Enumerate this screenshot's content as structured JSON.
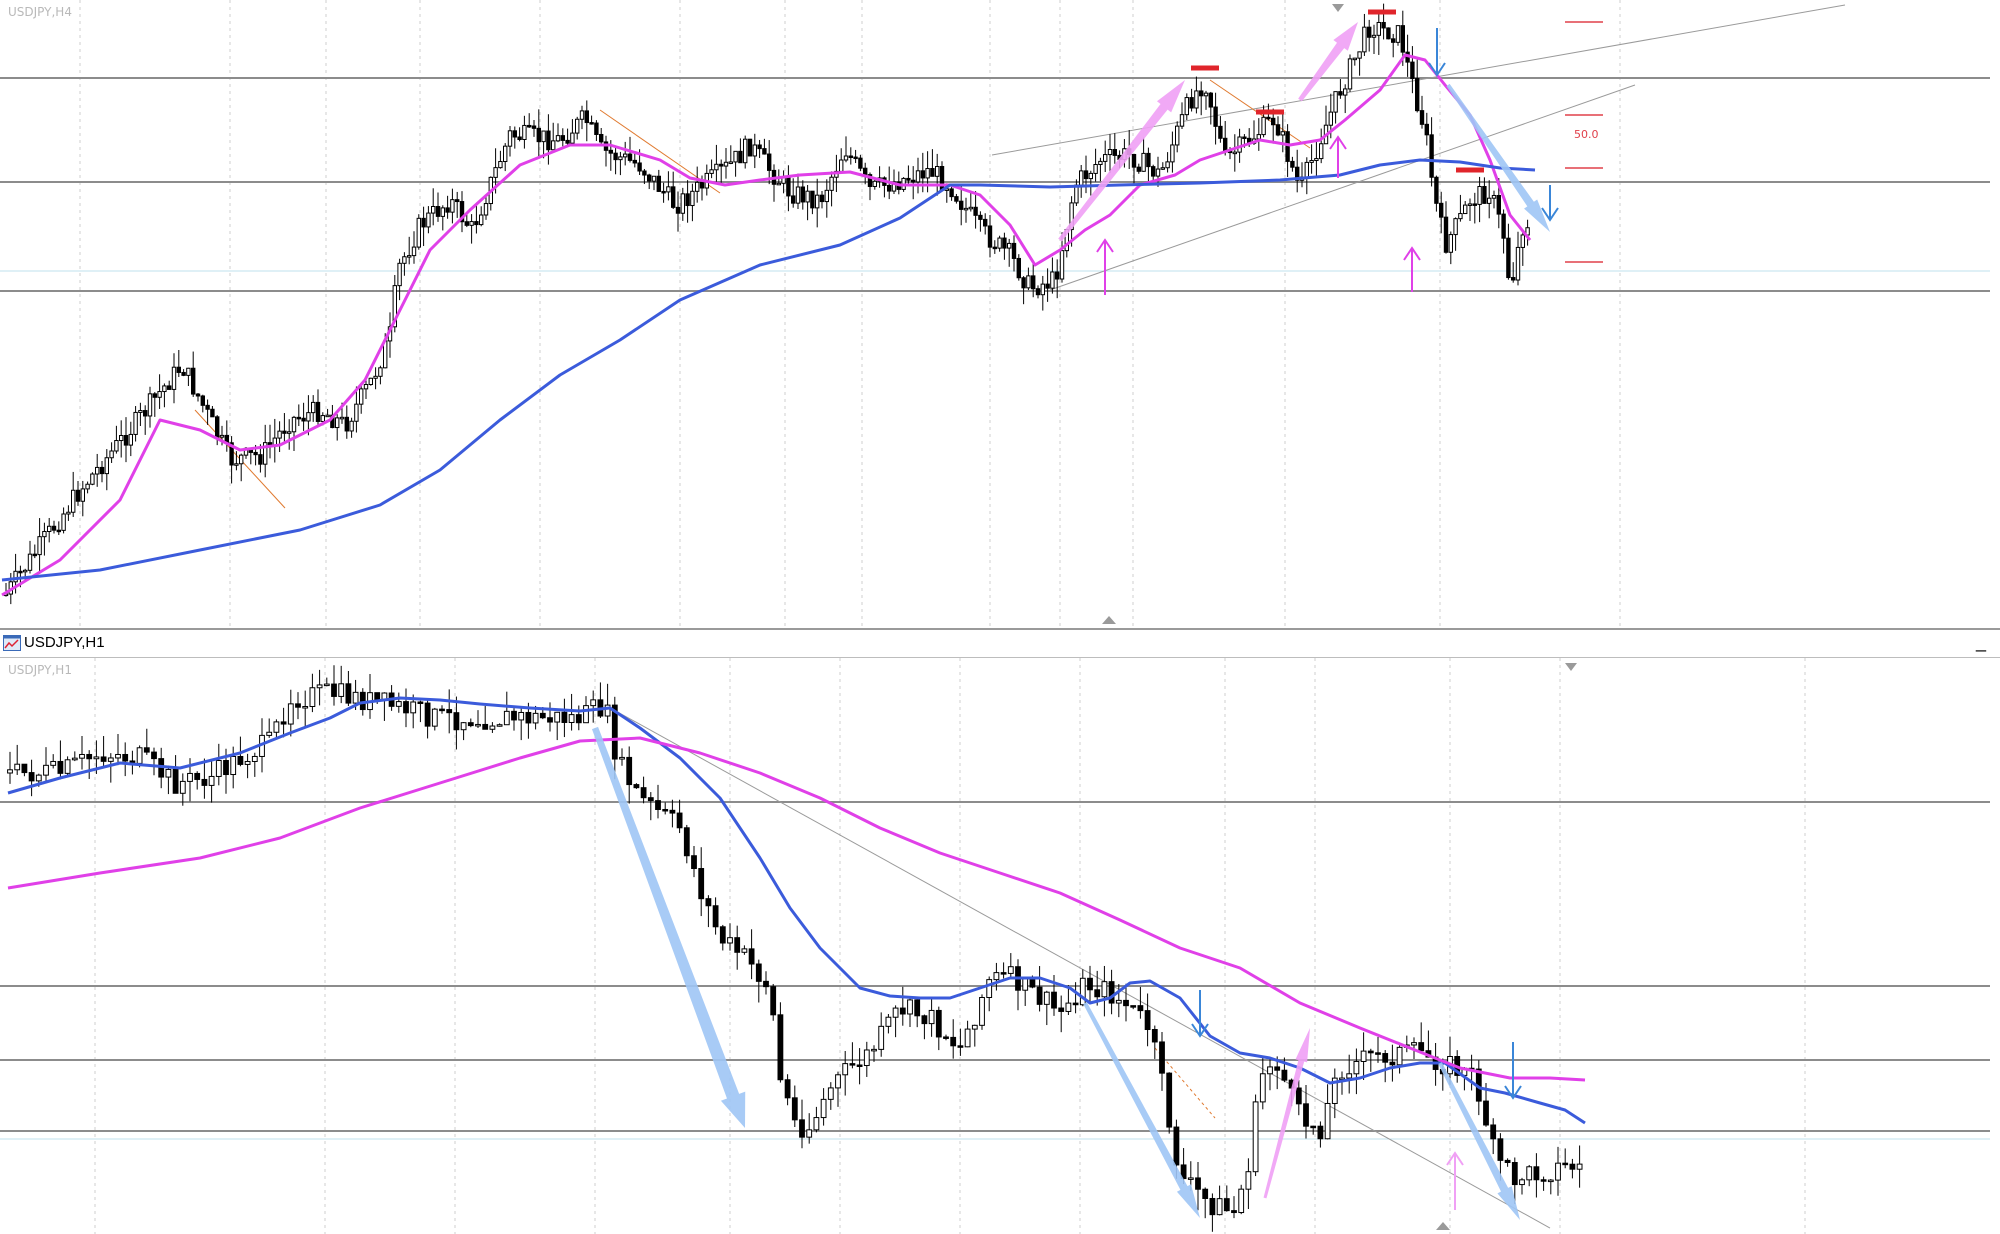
{
  "h4_chart": {
    "label": "USDJPY,H4",
    "fib_label": "50.0",
    "colors": {
      "fast_ma": "#e040e8",
      "slow_ma": "#3b5bdb",
      "bull_arrow": "#f0a0f5",
      "bear_arrow": "#9fc5f5",
      "resistance": "#e0252b",
      "level": "#8c8c8c"
    }
  },
  "h1_window": {
    "title": "USDJPY,H1",
    "minimize_label": "_",
    "icon": "chart-window-icon"
  },
  "h1_chart": {
    "label": "USDJPY,H1",
    "colors": {
      "fast_ma": "#3b5bdb",
      "slow_ma": "#e040e8",
      "bull_arrow": "#f0a0f5",
      "bear_arrow": "#9fc5f5",
      "level": "#8c8c8c"
    }
  }
}
